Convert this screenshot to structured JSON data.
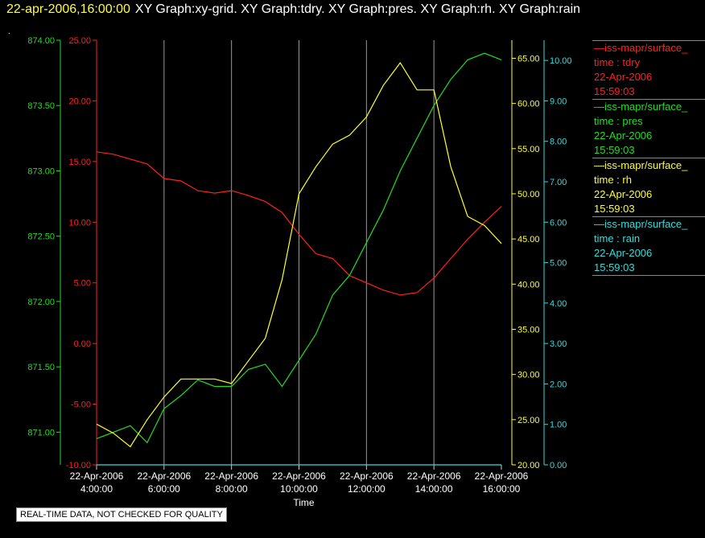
{
  "header": {
    "timestamp": "22-apr-2006,16:00:00",
    "graphs": "XY Graph:xy-grid.  XY Graph:tdry.  XY Graph:pres.  XY Graph:rh.  XY Graph:rain"
  },
  "footer": {
    "notice": "REAL-TIME DATA, NOT CHECKED FOR QUALITY"
  },
  "colors": {
    "tdry": "#ff2020",
    "pres": "#22dd22",
    "rh": "#ffff33",
    "rain": "#33dddd",
    "grid": "#999999"
  },
  "legend": [
    {
      "source": "iss-mapr/surface_",
      "var": "time : tdry",
      "date": "22-Apr-2006",
      "time": "15:59:03",
      "color": "#ff2020"
    },
    {
      "source": "iss-mapr/surface_",
      "var": "time : pres",
      "date": "22-Apr-2006",
      "time": "15:59:03",
      "color": "#22dd22"
    },
    {
      "source": "iss-mapr/surface_",
      "var": "time : rh",
      "date": "22-Apr-2006",
      "time": "15:59:03",
      "color": "#ffff33"
    },
    {
      "source": "iss-mapr/surface_",
      "var": "time : rain",
      "date": "22-Apr-2006",
      "time": "15:59:03",
      "color": "#33dddd"
    }
  ],
  "chart_data": {
    "type": "line",
    "xlabel": "Time",
    "x_ticks": [
      {
        "date": "22-Apr-2006",
        "time": "4:00:00",
        "hour": 4
      },
      {
        "date": "22-Apr-2006",
        "time": "6:00:00",
        "hour": 6
      },
      {
        "date": "22-Apr-2006",
        "time": "8:00:00",
        "hour": 8
      },
      {
        "date": "22-Apr-2006",
        "time": "10:00:00",
        "hour": 10
      },
      {
        "date": "22-Apr-2006",
        "time": "12:00:00",
        "hour": 12
      },
      {
        "date": "22-Apr-2006",
        "time": "14:00:00",
        "hour": 14
      },
      {
        "date": "22-Apr-2006",
        "time": "16:00:00",
        "hour": 16
      }
    ],
    "xlim": [
      4,
      16
    ],
    "grid": "vertical",
    "axes": {
      "pres": {
        "ylim": [
          870.75,
          874.0
        ],
        "ticks": [
          "871.00",
          "871.50",
          "872.00",
          "872.50",
          "873.00",
          "873.50",
          "874.00"
        ],
        "tick_values": [
          871.0,
          871.5,
          872.0,
          872.5,
          873.0,
          873.5,
          874.0
        ]
      },
      "tdry": {
        "ylim": [
          -10,
          25
        ],
        "ticks": [
          "-10.00",
          "-5.00",
          "0.00",
          "5.00",
          "10.00",
          "15.00",
          "20.00",
          "25.00"
        ],
        "tick_values": [
          -10,
          -5,
          0,
          5,
          10,
          15,
          20,
          25
        ]
      },
      "rh": {
        "ylim": [
          20,
          67
        ],
        "ticks": [
          "20.00",
          "25.00",
          "30.00",
          "35.00",
          "40.00",
          "45.00",
          "50.00",
          "55.00",
          "60.00",
          "65.00"
        ],
        "tick_values": [
          20,
          25,
          30,
          35,
          40,
          45,
          50,
          55,
          60,
          65
        ]
      },
      "rain": {
        "ylim": [
          0,
          10.5
        ],
        "ticks": [
          "0.00",
          "1.00",
          "2.00",
          "3.00",
          "4.00",
          "5.00",
          "6.00",
          "7.00",
          "8.00",
          "9.00",
          "10.00"
        ],
        "tick_values": [
          0,
          1,
          2,
          3,
          4,
          5,
          6,
          7,
          8,
          9,
          10
        ]
      }
    },
    "series": [
      {
        "name": "tdry",
        "axis": "tdry",
        "x": [
          4.0,
          4.5,
          5.0,
          5.5,
          6.0,
          6.5,
          7.0,
          7.5,
          8.0,
          8.5,
          9.0,
          9.5,
          10.0,
          10.5,
          11.0,
          11.5,
          12.0,
          12.5,
          13.0,
          13.5,
          14.0,
          14.5,
          15.0,
          15.5,
          16.0
        ],
        "values": [
          15.8,
          15.6,
          15.2,
          14.8,
          13.6,
          13.4,
          12.6,
          12.4,
          12.6,
          12.2,
          11.7,
          10.8,
          9.0,
          7.4,
          7.0,
          5.6,
          5.0,
          4.4,
          4.0,
          4.2,
          5.4,
          7.0,
          8.6,
          10.0,
          11.3
        ]
      },
      {
        "name": "pres",
        "axis": "pres",
        "x": [
          4.0,
          4.5,
          5.0,
          5.5,
          6.0,
          6.5,
          7.0,
          7.5,
          8.0,
          8.5,
          9.0,
          9.5,
          10.0,
          10.5,
          11.0,
          11.5,
          12.0,
          12.5,
          13.0,
          13.5,
          14.0,
          14.5,
          15.0,
          15.5,
          16.0
        ],
        "values": [
          870.95,
          871.0,
          871.05,
          870.92,
          871.18,
          871.28,
          871.4,
          871.35,
          871.35,
          871.48,
          871.52,
          871.35,
          871.55,
          871.75,
          872.05,
          872.2,
          872.45,
          872.7,
          873.0,
          873.25,
          873.5,
          873.7,
          873.85,
          873.9,
          873.85
        ]
      },
      {
        "name": "rh",
        "axis": "rh",
        "x": [
          4.0,
          4.5,
          5.0,
          5.5,
          6.0,
          6.5,
          7.0,
          7.5,
          8.0,
          8.5,
          9.0,
          9.5,
          10.0,
          10.5,
          11.0,
          11.5,
          12.0,
          12.5,
          13.0,
          13.5,
          14.0,
          14.5,
          15.0,
          15.5,
          16.0
        ],
        "values": [
          24.5,
          23.5,
          22.0,
          25.0,
          27.5,
          29.5,
          29.5,
          29.5,
          29.0,
          31.5,
          34.0,
          40.5,
          50.0,
          53.0,
          55.5,
          56.5,
          58.5,
          62.0,
          64.5,
          61.5,
          61.5,
          53.0,
          47.5,
          46.5,
          44.5
        ]
      },
      {
        "name": "rain",
        "axis": "rain",
        "x": [
          4.0,
          16.0
        ],
        "values": [
          0.0,
          0.0
        ]
      }
    ]
  }
}
